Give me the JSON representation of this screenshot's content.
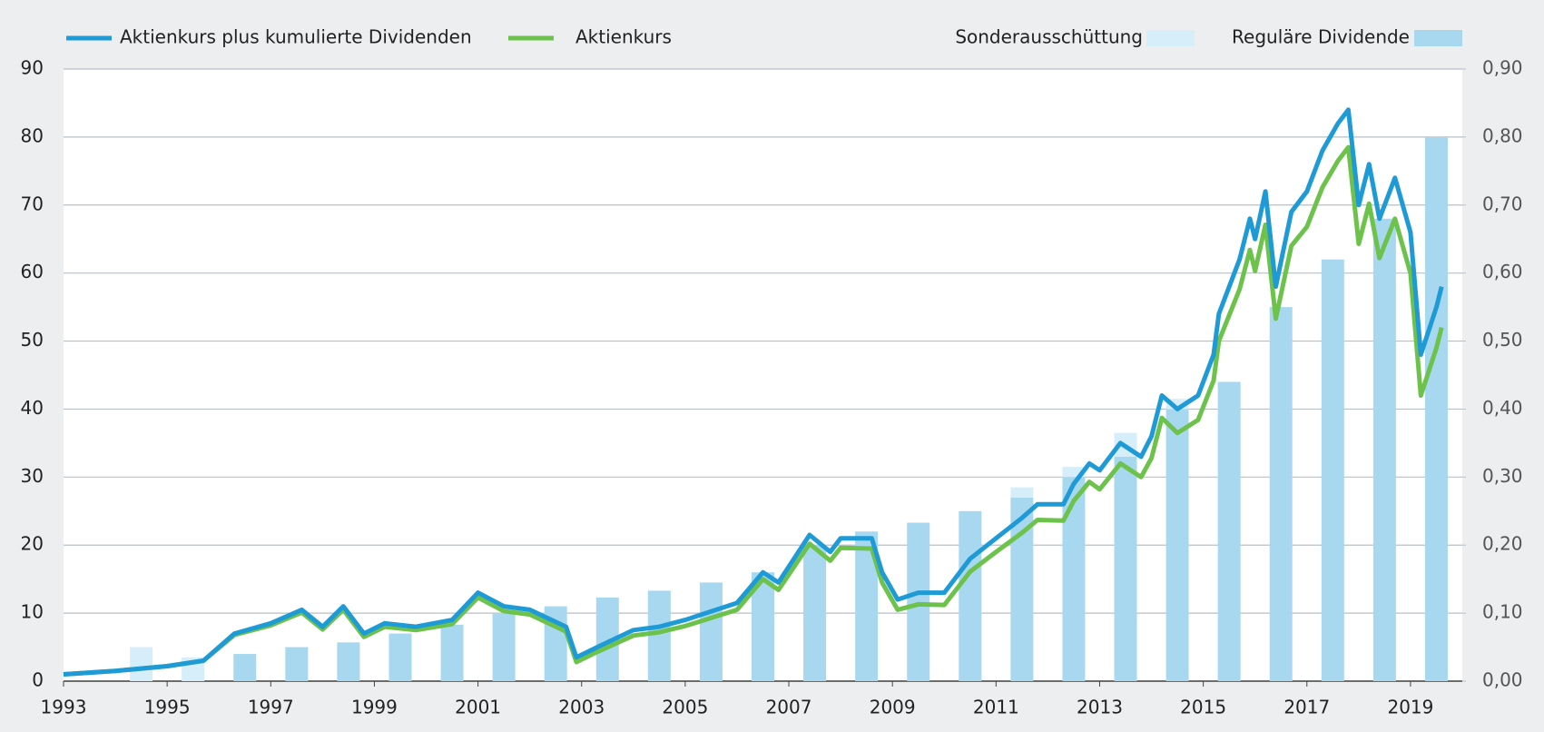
{
  "chart_data": {
    "type": "line",
    "xlim": [
      1993,
      2020
    ],
    "xticks": [
      1993,
      1995,
      1997,
      1999,
      2001,
      2003,
      2005,
      2007,
      2009,
      2011,
      2013,
      2015,
      2017,
      2019
    ],
    "ylim": [
      0,
      90
    ],
    "yticks": [
      0,
      10,
      20,
      30,
      40,
      50,
      60,
      70,
      80,
      90
    ],
    "y2lim": [
      0,
      0.9
    ],
    "y2ticks": [
      {
        "value": 0,
        "label": "0,00"
      },
      {
        "value": 0.1,
        "label": "0,10"
      },
      {
        "value": 0.2,
        "label": "0,20"
      },
      {
        "value": 0.3,
        "label": "0,30"
      },
      {
        "value": 0.4,
        "label": "0,40"
      },
      {
        "value": 0.5,
        "label": "0,50"
      },
      {
        "value": 0.6,
        "label": "0,60"
      },
      {
        "value": 0.7,
        "label": "0,70"
      },
      {
        "value": 0.8,
        "label": "0,80"
      },
      {
        "value": 0.9,
        "label": "0,90"
      }
    ],
    "grid": true,
    "series": [
      {
        "name": "Aktienkurs plus kumulierte Dividenden",
        "color": "#1e9ad6",
        "type": "line",
        "x": [
          1993,
          1994,
          1995,
          1995.7,
          1996.3,
          1997,
          1997.6,
          1998,
          1998.4,
          1998.8,
          1999.2,
          1999.8,
          2000.5,
          2001,
          2001.5,
          2002,
          2002.7,
          2002.9,
          2003.3,
          2004,
          2004.5,
          2005,
          2006,
          2006.5,
          2006.8,
          2007.4,
          2007.8,
          2008,
          2008.6,
          2008.8,
          2009.1,
          2009.5,
          2010,
          2010.5,
          2011,
          2011.5,
          2011.8,
          2012.3,
          2012.5,
          2012.8,
          2013,
          2013.4,
          2013.8,
          2014,
          2014.2,
          2014.5,
          2014.9,
          2015.2,
          2015.3,
          2015.7,
          2015.9,
          2016,
          2016.2,
          2016.4,
          2016.7,
          2017,
          2017.3,
          2017.6,
          2017.8,
          2018,
          2018.2,
          2018.4,
          2018.7,
          2019,
          2019.2,
          2019.5,
          2019.6
        ],
        "values": [
          1,
          1.5,
          2.2,
          3,
          7,
          8.5,
          10.5,
          8,
          11,
          7,
          8.5,
          8,
          9,
          13,
          11,
          10.5,
          8,
          3.5,
          5,
          7.5,
          8,
          9,
          11.5,
          16,
          14.5,
          21.5,
          19,
          21,
          21,
          16,
          12,
          13,
          13,
          18,
          21,
          24,
          26,
          26,
          29,
          32,
          31,
          35,
          33,
          36,
          42,
          40,
          42,
          48,
          54,
          62,
          68,
          65,
          72,
          58,
          69,
          72,
          78,
          82,
          84,
          70,
          76,
          68,
          74,
          66,
          48,
          55,
          58
        ]
      },
      {
        "name": "Aktienkurs",
        "color": "#6cc24a",
        "type": "line",
        "x": [
          1993,
          1994,
          1995,
          1995.7,
          1996.3,
          1997,
          1997.6,
          1998,
          1998.4,
          1998.8,
          1999.2,
          1999.8,
          2000.5,
          2001,
          2001.5,
          2002,
          2002.7,
          2002.9,
          2003.3,
          2004,
          2004.5,
          2005,
          2006,
          2006.5,
          2006.8,
          2007.4,
          2007.8,
          2008,
          2008.6,
          2008.8,
          2009.1,
          2009.5,
          2010,
          2010.5,
          2011,
          2011.5,
          2011.8,
          2012.3,
          2012.5,
          2012.8,
          2013,
          2013.4,
          2013.8,
          2014,
          2014.2,
          2014.5,
          2014.9,
          2015.2,
          2015.3,
          2015.7,
          2015.9,
          2016,
          2016.2,
          2016.4,
          2016.7,
          2017,
          2017.3,
          2017.6,
          2017.8,
          2018,
          2018.2,
          2018.4,
          2018.7,
          2019,
          2019.2,
          2019.5,
          2019.6
        ],
        "values": [
          1,
          1.5,
          2.2,
          3,
          6.8,
          8.2,
          10.1,
          7.6,
          10.5,
          6.5,
          8,
          7.5,
          8.4,
          12.3,
          10.3,
          9.8,
          7.3,
          2.8,
          4.3,
          6.7,
          7.2,
          8.1,
          10.5,
          15,
          13.4,
          20.2,
          17.7,
          19.6,
          19.5,
          14.5,
          10.5,
          11.3,
          11.2,
          16.1,
          19,
          21.8,
          23.7,
          23.6,
          26.5,
          29.3,
          28.2,
          32,
          30,
          32.8,
          38.7,
          36.5,
          38.4,
          44.2,
          50,
          57.6,
          63.4,
          60.3,
          67.1,
          53.3,
          64,
          66.8,
          72.6,
          76.5,
          78.5,
          64.3,
          70.2,
          62.2,
          68,
          60,
          42,
          49,
          52
        ]
      },
      {
        "name": "Sonderausschüttung",
        "color": "#d6eef9",
        "type": "bar",
        "axis": "y2",
        "stack_on": 3,
        "x": [
          1994,
          1995,
          1996,
          1997,
          1998,
          1999,
          2000,
          2001,
          2002,
          2003,
          2004,
          2005,
          2006,
          2007,
          2008,
          2009,
          2010,
          2011,
          2012,
          2013,
          2014,
          2015,
          2016,
          2017,
          2018,
          2019
        ],
        "values": [
          0.05,
          0.035,
          null,
          null,
          null,
          null,
          null,
          null,
          null,
          null,
          null,
          null,
          null,
          null,
          null,
          null,
          null,
          0.015,
          0.015,
          0.035,
          0.015,
          null,
          null,
          null,
          null,
          null
        ]
      },
      {
        "name": "Reguläre Dividende",
        "color": "#a8d8f0",
        "type": "bar",
        "axis": "y2",
        "x": [
          1994,
          1995,
          1996,
          1997,
          1998,
          1999,
          2000,
          2001,
          2002,
          2003,
          2004,
          2005,
          2006,
          2007,
          2008,
          2009,
          2010,
          2011,
          2012,
          2013,
          2014,
          2015,
          2016,
          2017,
          2018,
          2019
        ],
        "values": [
          null,
          null,
          0.04,
          0.05,
          0.057,
          0.07,
          0.083,
          0.1,
          0.11,
          0.123,
          0.133,
          0.145,
          0.16,
          0.2,
          0.22,
          0.233,
          0.25,
          0.27,
          0.3,
          0.33,
          0.4,
          0.44,
          0.55,
          0.62,
          0.68,
          0.8
        ]
      }
    ]
  }
}
